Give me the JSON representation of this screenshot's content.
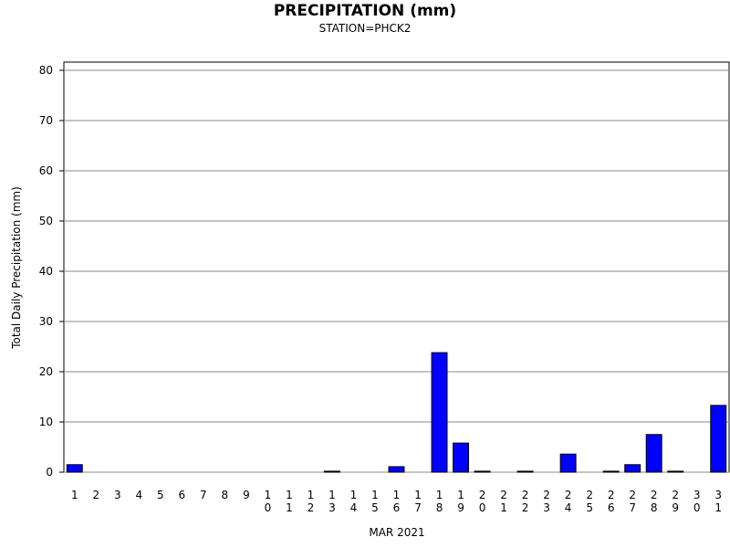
{
  "chart_data": {
    "type": "bar",
    "title": "PRECIPITATION (mm)",
    "subtitle": "STATION=PHCK2",
    "x_label": "MAR 2021",
    "y_label": "Total Daily Precipitation (mm)",
    "categories": [
      "1",
      "2",
      "3",
      "4",
      "5",
      "6",
      "7",
      "8",
      "9",
      "10",
      "11",
      "12",
      "13",
      "14",
      "15",
      "16",
      "17",
      "18",
      "19",
      "20",
      "21",
      "22",
      "23",
      "24",
      "25",
      "26",
      "27",
      "28",
      "29",
      "30",
      "31"
    ],
    "values": [
      1.5,
      0,
      0,
      0,
      0,
      0,
      0,
      0,
      0,
      0,
      0,
      0,
      0.2,
      0,
      0,
      1.1,
      0,
      23.8,
      5.8,
      0.2,
      0,
      0.2,
      0,
      3.6,
      0,
      0.2,
      1.5,
      7.5,
      0.2,
      0,
      13.3
    ],
    "color": "#0000ff",
    "ylim": [
      0,
      80
    ],
    "yticks": [
      0,
      10,
      20,
      30,
      40,
      50,
      60,
      70,
      80
    ],
    "grid": true
  }
}
